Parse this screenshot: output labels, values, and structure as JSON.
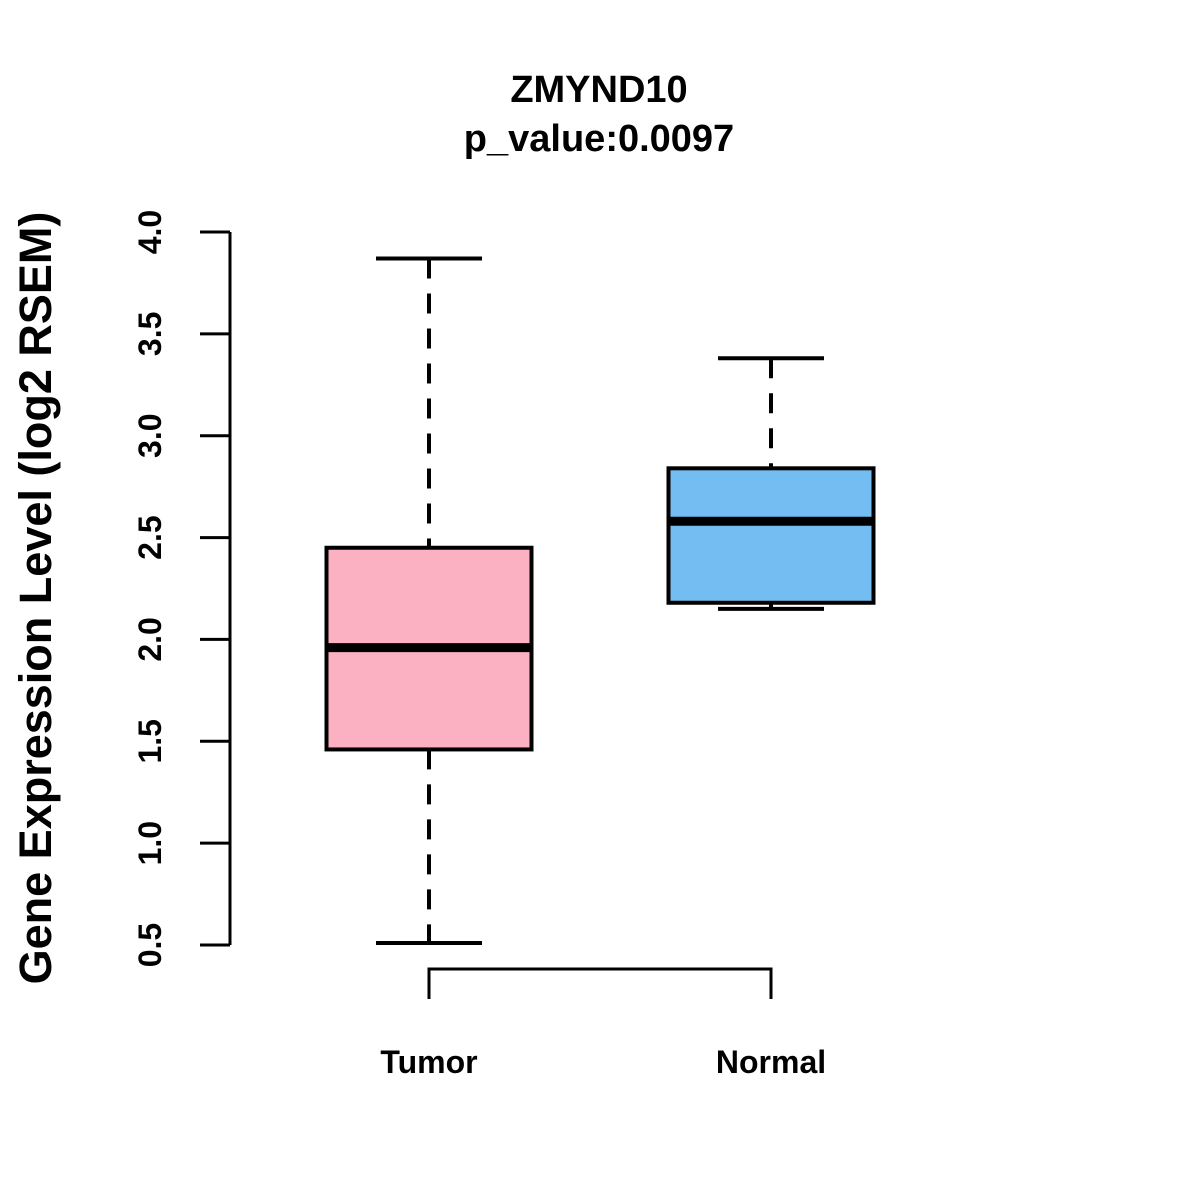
{
  "title": "ZMYND10",
  "subtitle": "p_value:0.0097",
  "y_axis": {
    "label": "Gene Expression Level (log2 RSEM)",
    "tick_labels": [
      "0.5",
      "1.0",
      "1.5",
      "2.0",
      "2.5",
      "3.0",
      "3.5",
      "4.0"
    ],
    "tick_values": [
      0.5,
      1.0,
      1.5,
      2.0,
      2.5,
      3.0,
      3.5,
      4.0
    ]
  },
  "chart_data": {
    "type": "boxplot",
    "categories": [
      "Tumor",
      "Normal"
    ],
    "series": [
      {
        "name": "Tumor",
        "lower_whisker": 0.51,
        "q1": 1.46,
        "median": 1.96,
        "q3": 2.45,
        "upper_whisker": 3.87,
        "fill": "#FCB1C2"
      },
      {
        "name": "Normal",
        "lower_whisker": 2.15,
        "q1": 2.18,
        "median": 2.58,
        "q3": 2.84,
        "upper_whisker": 3.38,
        "fill": "#74BDF2"
      }
    ],
    "ylim": [
      0.5,
      4.0
    ],
    "title": "ZMYND10",
    "subtitle": "p_value:0.0097",
    "ylabel": "Gene Expression Level (log2 RSEM)",
    "xlabel": "",
    "grid": false,
    "legend": "none"
  },
  "colors": {
    "background": "#FFFFFF",
    "line": "#000000",
    "tumor_fill": "#FCB1C2",
    "normal_fill": "#74BDF2"
  }
}
